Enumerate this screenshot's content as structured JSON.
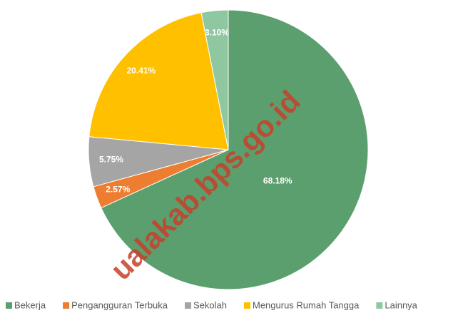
{
  "chart_data": {
    "type": "pie",
    "categories": [
      "Bekerja",
      "Pengangguran Terbuka",
      "Sekolah",
      "Mengurus Rumah Tangga",
      "Lainnya"
    ],
    "values": [
      68.18,
      2.57,
      5.75,
      20.41,
      3.1
    ],
    "value_labels": [
      "68.18%",
      "2.57%",
      "5.75%",
      "20.41%",
      "3.10%"
    ],
    "colors": [
      "#5b9f6f",
      "#ed7d31",
      "#a5a5a5",
      "#ffc000",
      "#8fc8a0"
    ],
    "legend": "bottom"
  },
  "watermark": "ualakab.bps.go.id"
}
